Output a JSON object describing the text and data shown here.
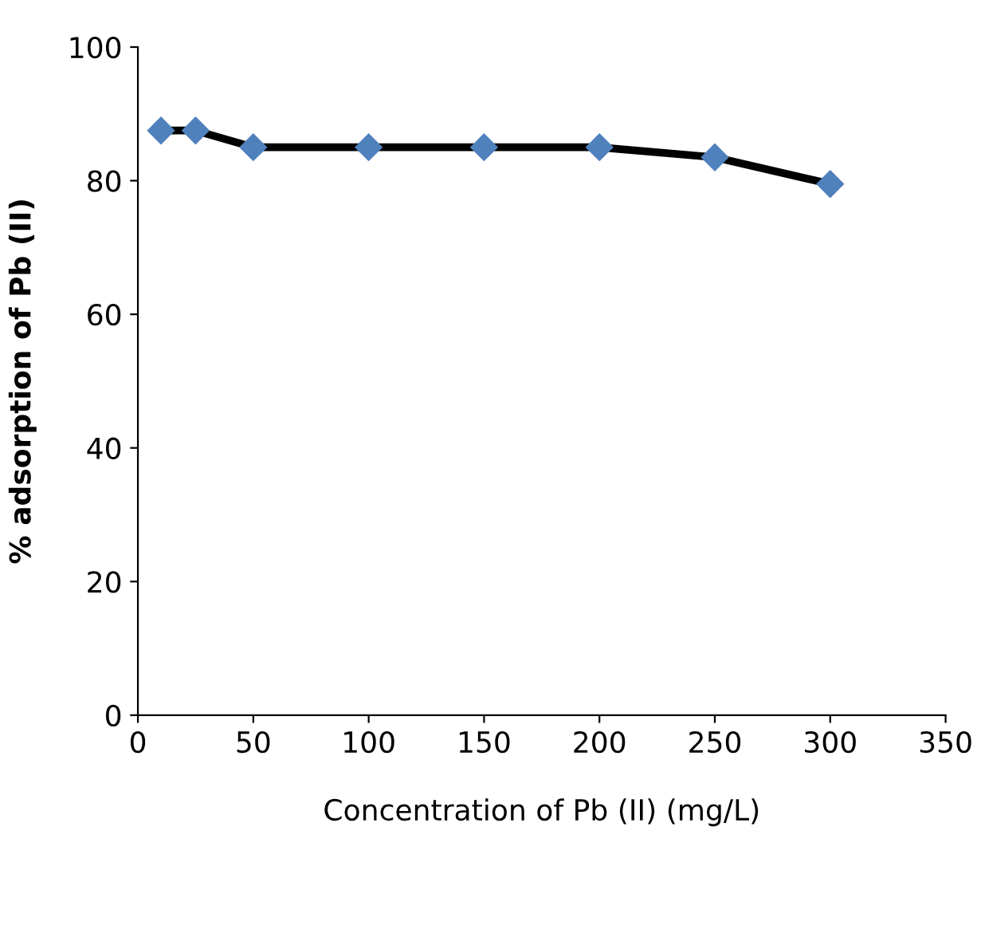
{
  "chart_data": {
    "type": "line",
    "xlabel": "Concentration of Pb (II) (mg/L)",
    "ylabel": "% adsorption of Pb (II)",
    "x": [
      10,
      25,
      50,
      100,
      150,
      200,
      250,
      300
    ],
    "series": [
      {
        "color": "#4f81bd",
        "values": [
          87.5,
          87.5,
          85,
          85,
          85,
          85,
          83.5,
          79.5
        ]
      }
    ],
    "xlim": [
      0,
      350
    ],
    "xticks": [
      0,
      50,
      100,
      150,
      200,
      250,
      300,
      350
    ],
    "ylim": [
      0,
      100
    ],
    "yticks": [
      0,
      20,
      40,
      60,
      80,
      100
    ],
    "marker": "diamond",
    "line_style": "solid",
    "grid": false,
    "legend": false
  }
}
